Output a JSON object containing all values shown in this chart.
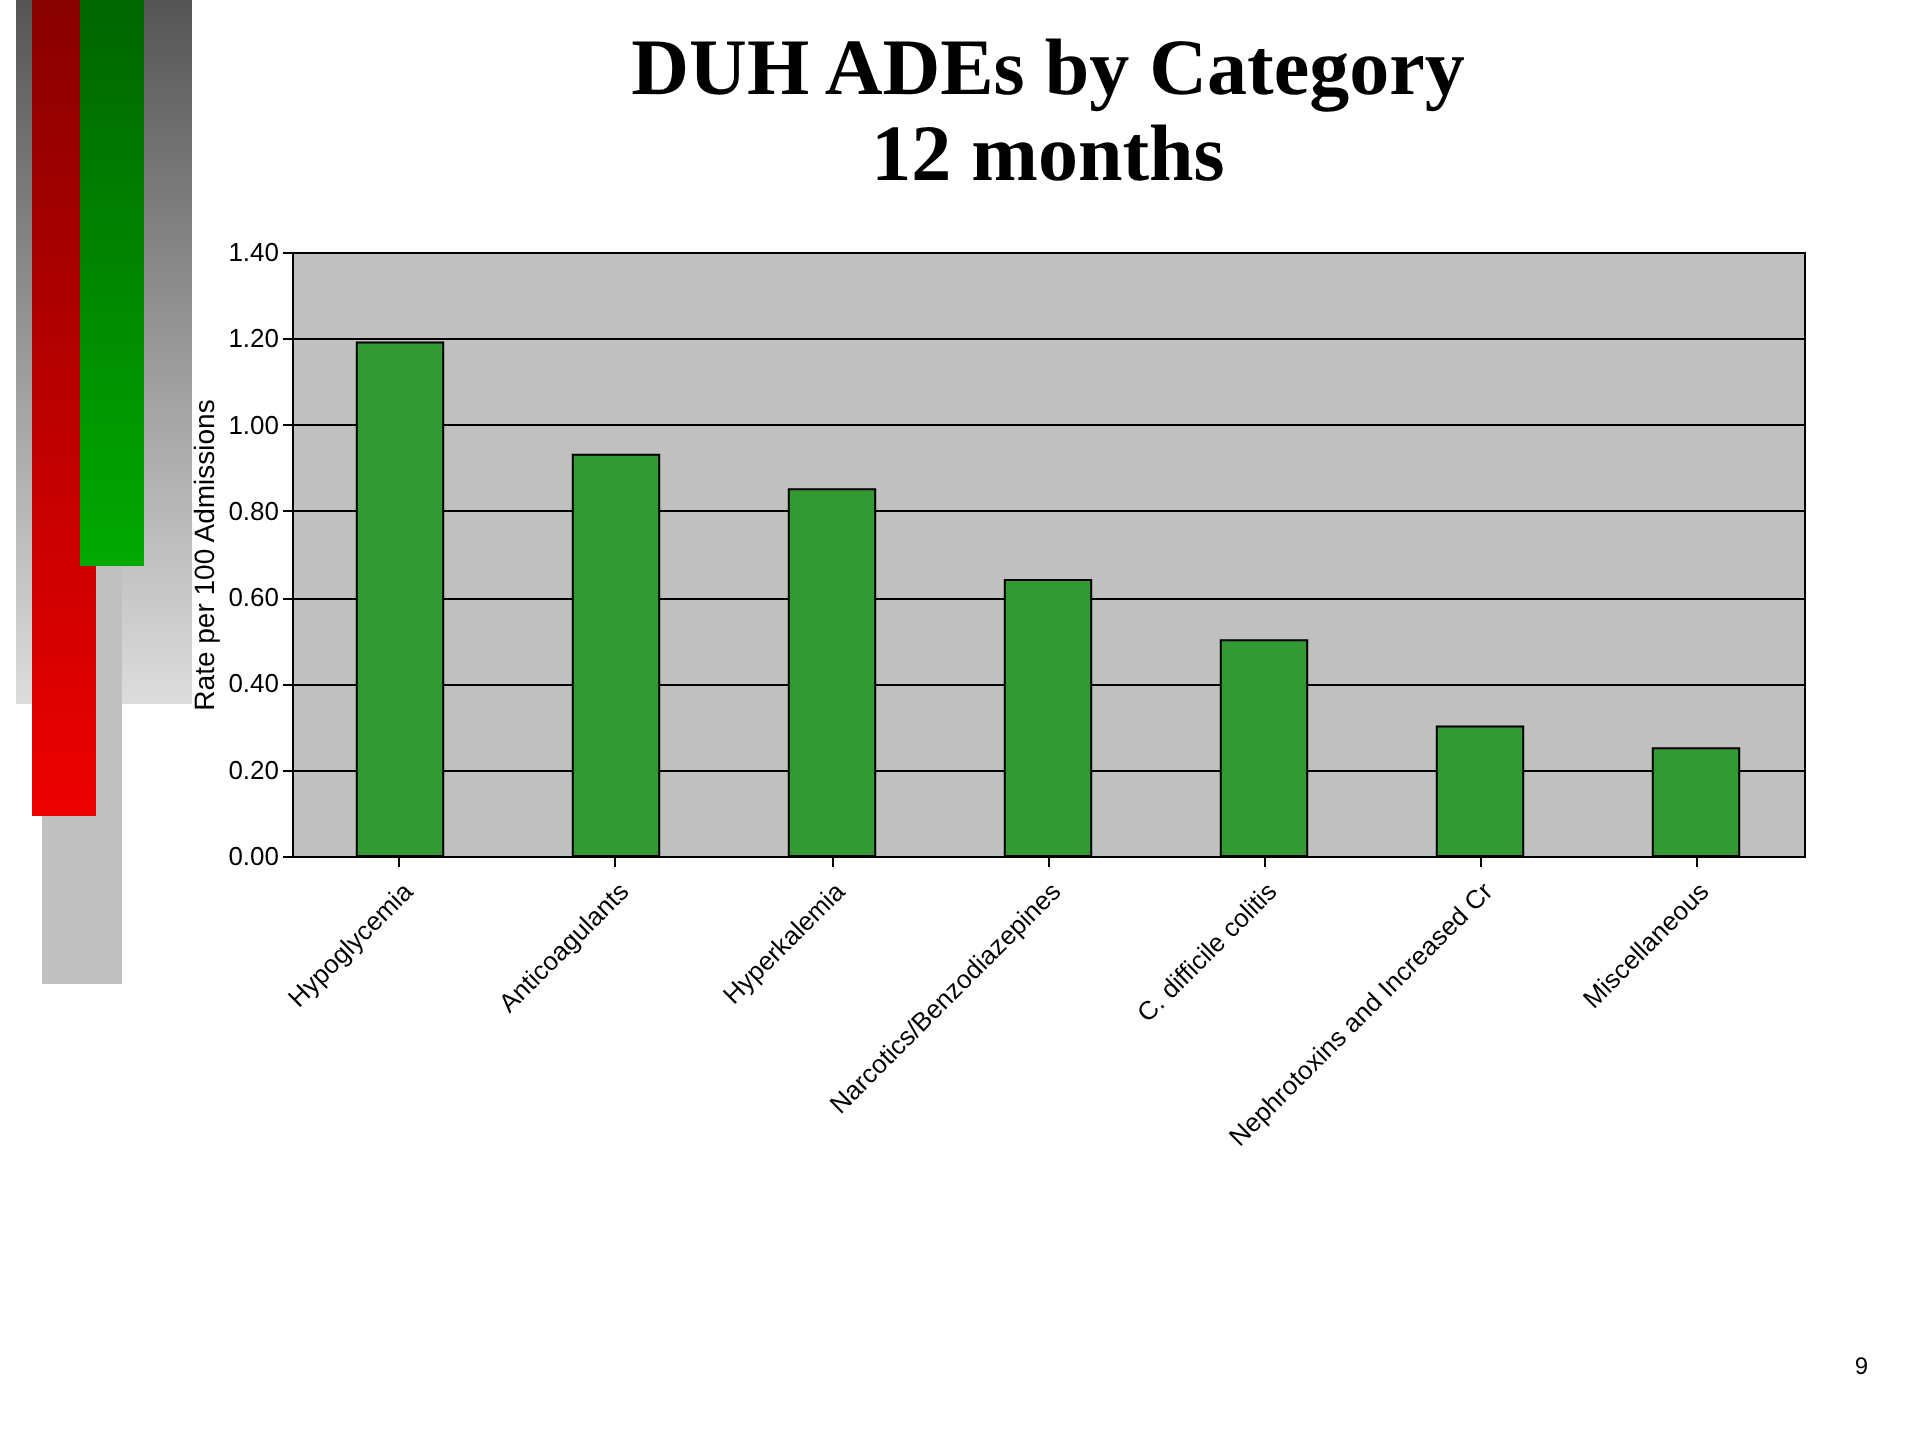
{
  "chart_data": {
    "type": "bar",
    "title": "DUH ADEs by Category",
    "subtitle": "12 months",
    "ylabel": "Rate per 100 Admissions",
    "categories": [
      "Hypoglycemia",
      "Anticoagulants",
      "Hyperkalemia",
      "Narcotics/Benzodiazepines",
      "C. difficile colitis",
      "Nephrotoxins and Increased Cr",
      "Miscellaneous"
    ],
    "values": [
      1.19,
      0.93,
      0.85,
      0.64,
      0.5,
      0.3,
      0.25
    ],
    "color": "#339933",
    "ylim": [
      0,
      1.4
    ],
    "yticks": [
      {
        "value": 0,
        "label": "0.00"
      },
      {
        "value": 0.2,
        "label": "0.20"
      },
      {
        "value": 0.4,
        "label": "0.40"
      },
      {
        "value": 0.6,
        "label": "0.60"
      },
      {
        "value": 0.8,
        "label": "0.80"
      },
      {
        "value": 1,
        "label": "1.00"
      },
      {
        "value": 1.2,
        "label": "1.20"
      },
      {
        "value": 1.4,
        "label": "1.40"
      }
    ],
    "grid": "y",
    "annotations": [
      "9"
    ]
  }
}
